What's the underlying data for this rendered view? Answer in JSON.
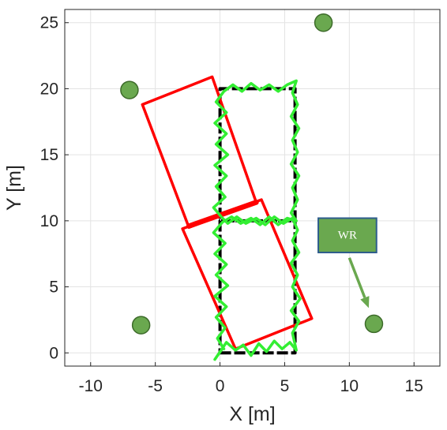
{
  "chart_data": {
    "type": "scatter",
    "xlabel": "X [m]",
    "ylabel": "Y [m]",
    "xlim": [
      -12,
      17
    ],
    "ylim": [
      -1,
      26
    ],
    "xticks": [
      -10,
      -5,
      0,
      5,
      10,
      15
    ],
    "yticks": [
      0,
      5,
      10,
      15,
      20,
      25
    ],
    "grid": true,
    "reference_path": {
      "color": "#000000",
      "points": [
        [
          0,
          0
        ],
        [
          5.8,
          0
        ],
        [
          5.8,
          10
        ],
        [
          0,
          10
        ],
        [
          0,
          20
        ],
        [
          5.8,
          20
        ],
        [
          5.8,
          10
        ],
        [
          0,
          10
        ],
        [
          0,
          0
        ]
      ]
    },
    "rotated_rectangles": {
      "color": "#ff0000",
      "shapes": [
        [
          [
            -6.0,
            18.8
          ],
          [
            -0.6,
            20.9
          ],
          [
            2.8,
            11.4
          ],
          [
            -2.4,
            9.5
          ]
        ],
        [
          [
            -2.9,
            9.4
          ],
          [
            3.2,
            11.6
          ],
          [
            7.1,
            2.6
          ],
          [
            1.2,
            0.3
          ]
        ]
      ],
      "bold_segment": [
        [
          -2.4,
          9.6
        ],
        [
          2.8,
          11.4
        ]
      ]
    },
    "tracked_path": {
      "color": "#33ee33",
      "points": [
        [
          0.1,
          0.2
        ],
        [
          -0.4,
          -0.5
        ],
        [
          0.5,
          0.8
        ],
        [
          1.2,
          0.2
        ],
        [
          1.8,
          0.6
        ],
        [
          2.4,
          -0.2
        ],
        [
          3.0,
          0.7
        ],
        [
          3.6,
          0.1
        ],
        [
          4.2,
          0.9
        ],
        [
          4.8,
          0.3
        ],
        [
          5.4,
          0.8
        ],
        [
          5.9,
          0.2
        ],
        [
          5.6,
          1.5
        ],
        [
          6.1,
          2.4
        ],
        [
          5.5,
          3.2
        ],
        [
          6.2,
          4.1
        ],
        [
          5.6,
          5.0
        ],
        [
          6.0,
          5.9
        ],
        [
          5.5,
          6.8
        ],
        [
          6.1,
          7.6
        ],
        [
          5.6,
          8.5
        ],
        [
          6.0,
          9.3
        ],
        [
          5.6,
          10.2
        ],
        [
          4.9,
          9.8
        ],
        [
          4.2,
          10.3
        ],
        [
          3.5,
          9.7
        ],
        [
          2.8,
          10.2
        ],
        [
          2.0,
          9.8
        ],
        [
          1.3,
          10.3
        ],
        [
          0.6,
          9.8
        ],
        [
          0.1,
          10.3
        ],
        [
          -0.5,
          11.0
        ],
        [
          0.4,
          11.8
        ],
        [
          -0.3,
          12.6
        ],
        [
          0.5,
          13.4
        ],
        [
          -0.4,
          14.2
        ],
        [
          0.6,
          15.0
        ],
        [
          -0.3,
          15.8
        ],
        [
          0.5,
          16.6
        ],
        [
          -0.4,
          17.4
        ],
        [
          0.5,
          18.2
        ],
        [
          -0.3,
          19.0
        ],
        [
          0.3,
          19.8
        ],
        [
          1.0,
          20.3
        ],
        [
          1.7,
          19.8
        ],
        [
          2.4,
          20.4
        ],
        [
          3.1,
          19.9
        ],
        [
          3.8,
          20.3
        ],
        [
          4.5,
          19.8
        ],
        [
          5.2,
          20.3
        ],
        [
          5.9,
          20.6
        ],
        [
          5.6,
          19.7
        ],
        [
          6.0,
          18.8
        ],
        [
          5.5,
          17.9
        ],
        [
          6.1,
          17.0
        ],
        [
          5.6,
          16.1
        ],
        [
          6.0,
          15.2
        ],
        [
          5.5,
          14.3
        ],
        [
          6.1,
          13.4
        ],
        [
          5.6,
          12.5
        ],
        [
          6.0,
          11.6
        ],
        [
          5.5,
          10.6
        ],
        [
          5.9,
          10.0
        ],
        [
          5.2,
          10.2
        ],
        [
          4.5,
          9.7
        ],
        [
          3.8,
          10.3
        ],
        [
          3.1,
          9.7
        ],
        [
          2.4,
          10.2
        ],
        [
          1.6,
          9.8
        ],
        [
          0.9,
          10.3
        ],
        [
          0.2,
          9.9
        ],
        [
          -0.5,
          9.1
        ],
        [
          0.4,
          8.3
        ],
        [
          -0.4,
          7.5
        ],
        [
          0.5,
          6.7
        ],
        [
          -0.3,
          5.9
        ],
        [
          0.6,
          5.1
        ],
        [
          -0.4,
          4.3
        ],
        [
          0.5,
          3.5
        ],
        [
          -0.3,
          2.7
        ],
        [
          0.4,
          1.9
        ],
        [
          -0.2,
          1.1
        ],
        [
          0.3,
          0.3
        ]
      ]
    },
    "markers": {
      "color": "#6aa84f",
      "points": [
        [
          8,
          25
        ],
        [
          -7,
          19.9
        ],
        [
          -6.1,
          2.1
        ],
        [
          11.9,
          2.2
        ]
      ]
    },
    "annotation": {
      "text": "WR",
      "box_color": "#6aa84f",
      "border_color": "#2e5d8c",
      "box_x": [
        7.6,
        12.1
      ],
      "box_y": [
        7.6,
        10.2
      ],
      "arrow_from": [
        10,
        7.2
      ],
      "arrow_to": [
        11.5,
        3.4
      ]
    }
  }
}
